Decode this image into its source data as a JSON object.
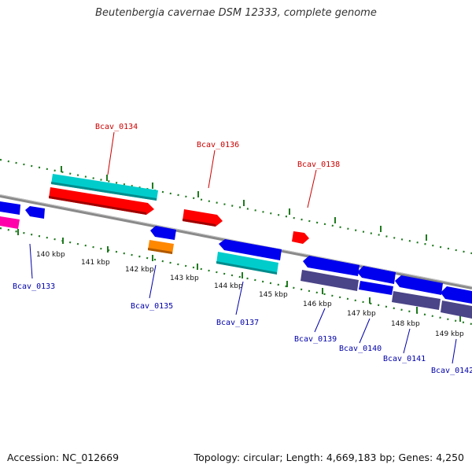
{
  "title": "Beutenbergia cavernae DSM 12333, complete genome",
  "footer": {
    "accession": "Accession: NC_012669",
    "summary": "Topology: circular; Length: 4,669,183 bp; Genes: 4,250"
  },
  "colors": {
    "forward_label": "#cc0000",
    "reverse_label": "#0000aa",
    "tick": "#1f7a1f",
    "backbone": "#8a8a8a",
    "red": "#ff0000",
    "cyan": "#00cccc",
    "blue": "#0000ee",
    "orange": "#ff8800",
    "magenta": "#ff00aa",
    "slate": "#4a4488"
  },
  "kbp_ticks": [
    "140 kbp",
    "141 kbp",
    "142 kbp",
    "143 kbp",
    "144 kbp",
    "145 kbp",
    "146 kbp",
    "147 kbp",
    "148 kbp",
    "149 kbp"
  ],
  "forward_labels": [
    "Bcav_0134",
    "Bcav_0136",
    "Bcav_0138"
  ],
  "reverse_labels": [
    "Bcav_0133",
    "Bcav_0135",
    "Bcav_0137",
    "Bcav_0139",
    "Bcav_0140",
    "Bcav_0141",
    "Bcav_0142"
  ]
}
